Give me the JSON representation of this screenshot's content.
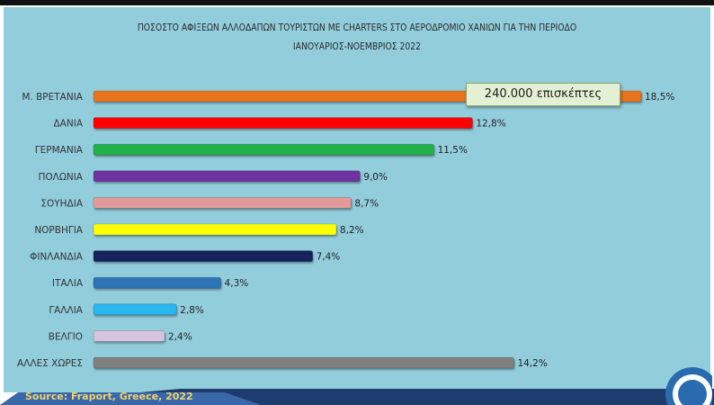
{
  "chart_data": {
    "type": "bar",
    "orientation": "horizontal",
    "title_line1": "ΠΟΣΟΣΤΟ ΑΦΙΞΕΩΝ ΑΛΛΟΔΑΠΩΝ ΤΟΥΡΙΣΤΩΝ ΜΕ CHARTERS ΣΤΟ ΑΕΡΟΔΡΟΜΙΟ ΧΑΝΙΩΝ ΓΙΑ ΤΗΝ ΠΕΡΙΟΔΟ",
    "title_line2": "ΙΑΝΟΥΑΡΙΟΣ-ΝΟΕΜΒΡΙΟΣ 2022",
    "categories": [
      "Μ. ΒΡΕΤΑΝΙΑ",
      "ΔΑΝΙΑ",
      "ΓΕΡΜΑΝΙΑ",
      "ΠΟΛΩΝΙΑ",
      "ΣΟΥΗΔΙΑ",
      "ΝΟΡΒΗΓΙΑ",
      "ΦΙΝΛΑΝΔΙΑ",
      "ΙΤΑΛΙΑ",
      "ΓΑΛΛΙΑ",
      "ΒΕΛΓΙΟ",
      "ΑΛΛΕΣ ΧΩΡΕΣ"
    ],
    "values": [
      18.5,
      12.8,
      11.5,
      9.0,
      8.7,
      8.2,
      7.4,
      4.3,
      2.8,
      2.4,
      14.2
    ],
    "value_labels": [
      "18,5%",
      "12,8%",
      "11,5%",
      "9,0%",
      "8,7%",
      "8,2%",
      "7,4%",
      "4,3%",
      "2,8%",
      "2,4%",
      "14,2%"
    ],
    "colors": [
      "#e8731e",
      "#ff0000",
      "#22b04c",
      "#7030a0",
      "#e39a9a",
      "#ffff00",
      "#16245c",
      "#2e75b6",
      "#2bb7ef",
      "#d6c3dd",
      "#808080"
    ],
    "xlim": [
      0,
      18.5
    ],
    "grid": false,
    "annotation": "240.000 επισκέπτες"
  },
  "footer": {
    "source": "Source: Fraport, Greece, 2022"
  },
  "colors": {
    "panel": "#92cddc",
    "footer_band": "#1f3c6e",
    "source_text": "#f2d36b"
  }
}
